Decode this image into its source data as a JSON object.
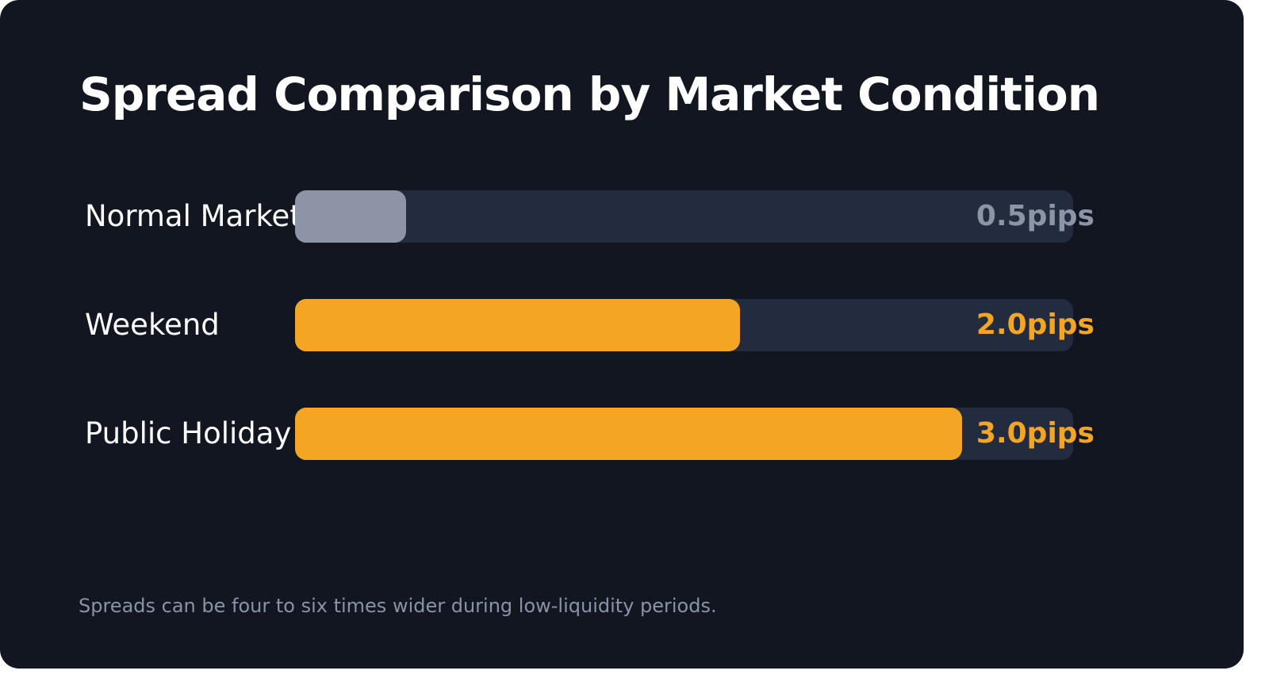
{
  "colors": {
    "background": "#111621",
    "track": "#232c3e",
    "neutral_bar": "#8c94a6",
    "accent_bar": "#f5a524",
    "footnote": "#8a93a6"
  },
  "title": "Spread Comparison by Market Condition",
  "footnote": "Spreads can be four to six times wider during low-liquidity periods.",
  "chart_data": {
    "type": "bar",
    "orientation": "horizontal",
    "title": "Spread Comparison by Market Condition",
    "categories": [
      "Normal Market",
      "Weekend",
      "Public Holiday"
    ],
    "values": [
      0.5,
      2.0,
      3.0
    ],
    "value_labels": [
      "0.5pips",
      "2.0pips",
      "3.0pips"
    ],
    "unit": "pips",
    "xlim": [
      0,
      3.5
    ],
    "bar_colors": [
      "#8c94a6",
      "#f5a524",
      "#f5a524"
    ],
    "grid": false,
    "legend": "none"
  }
}
